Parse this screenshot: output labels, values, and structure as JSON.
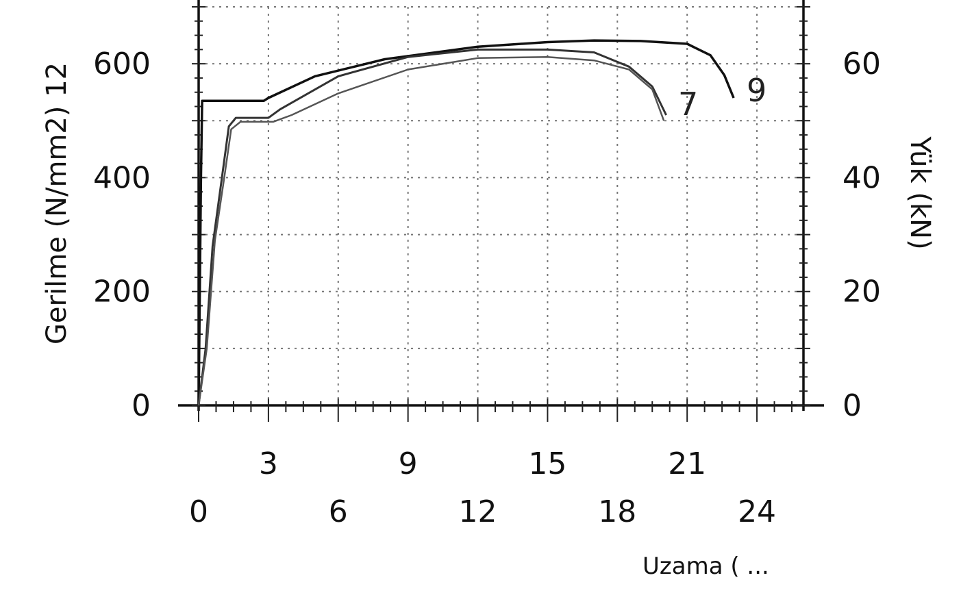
{
  "chart_data": {
    "type": "line",
    "title": "",
    "xlabel": "Uzama ( ...",
    "ylabel": "Gerilme (N/mm2) 12",
    "y2label": "Yük (kN)",
    "xlim": [
      0,
      26
    ],
    "ylim": [
      0,
      700
    ],
    "y2lim": [
      0,
      70
    ],
    "x_ticks_lower": [
      0,
      6,
      12,
      18,
      24
    ],
    "x_ticks_upper": [
      3,
      9,
      15,
      21
    ],
    "y_ticks": [
      0,
      200,
      400,
      600
    ],
    "y2_ticks": [
      0,
      20,
      40,
      60
    ],
    "grid": true,
    "curve_labels": [
      "7",
      "9"
    ],
    "series": [
      {
        "values": [
          [
            0,
            0
          ],
          [
            0.05,
            200
          ],
          [
            0.1,
            400
          ],
          [
            0.15,
            535
          ],
          [
            2.8,
            535
          ],
          [
            3,
            540
          ],
          [
            5,
            578
          ],
          [
            8,
            608
          ],
          [
            12,
            630
          ],
          [
            15,
            638
          ],
          [
            17,
            641
          ],
          [
            19,
            640
          ],
          [
            21,
            635
          ],
          [
            22,
            615
          ],
          [
            22.6,
            580
          ],
          [
            23,
            540
          ]
        ],
        "color": "#111111"
      },
      {
        "values": [
          [
            0,
            0
          ],
          [
            0.3,
            100
          ],
          [
            0.6,
            280
          ],
          [
            1,
            400
          ],
          [
            1.3,
            490
          ],
          [
            1.6,
            505
          ],
          [
            3,
            505
          ],
          [
            3.5,
            520
          ],
          [
            6,
            578
          ],
          [
            9,
            612
          ],
          [
            12,
            625
          ],
          [
            15,
            625
          ],
          [
            17,
            620
          ],
          [
            18.5,
            595
          ],
          [
            19.5,
            560
          ],
          [
            20.1,
            510
          ]
        ],
        "color": "#333333"
      },
      {
        "values": [
          [
            0,
            0
          ],
          [
            0.35,
            100
          ],
          [
            0.7,
            290
          ],
          [
            1.1,
            400
          ],
          [
            1.4,
            485
          ],
          [
            1.8,
            498
          ],
          [
            3.2,
            498
          ],
          [
            4,
            510
          ],
          [
            6,
            548
          ],
          [
            9,
            590
          ],
          [
            12,
            610
          ],
          [
            15,
            612
          ],
          [
            17,
            606
          ],
          [
            18.5,
            590
          ],
          [
            19.5,
            555
          ],
          [
            20,
            500
          ]
        ],
        "color": "#555555"
      }
    ]
  }
}
